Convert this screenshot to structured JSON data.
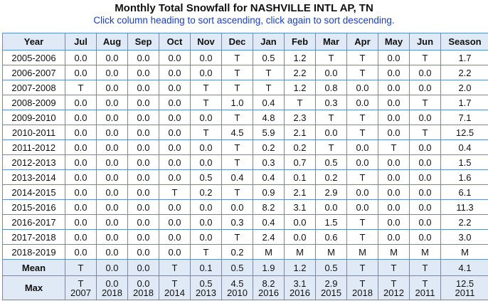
{
  "title": "Monthly Total Snowfall for NASHVILLE INTL AP, TN",
  "subtitle": "Click column heading to sort ascending, click again to sort descending.",
  "columns": [
    "Year",
    "Jul",
    "Aug",
    "Sep",
    "Oct",
    "Nov",
    "Dec",
    "Jan",
    "Feb",
    "Mar",
    "Apr",
    "May",
    "Jun",
    "Season"
  ],
  "rows": [
    [
      "2005-2006",
      "0.0",
      "0.0",
      "0.0",
      "0.0",
      "0.0",
      "T",
      "0.5",
      "1.2",
      "T",
      "T",
      "0.0",
      "T",
      "1.7"
    ],
    [
      "2006-2007",
      "0.0",
      "0.0",
      "0.0",
      "0.0",
      "0.0",
      "T",
      "T",
      "2.2",
      "0.0",
      "T",
      "0.0",
      "0.0",
      "2.2"
    ],
    [
      "2007-2008",
      "T",
      "0.0",
      "0.0",
      "0.0",
      "T",
      "T",
      "T",
      "1.2",
      "0.8",
      "0.0",
      "0.0",
      "0.0",
      "2.0"
    ],
    [
      "2008-2009",
      "0.0",
      "0.0",
      "0.0",
      "0.0",
      "T",
      "1.0",
      "0.4",
      "T",
      "0.3",
      "0.0",
      "0.0",
      "T",
      "1.7"
    ],
    [
      "2009-2010",
      "0.0",
      "0.0",
      "0.0",
      "0.0",
      "0.0",
      "T",
      "4.8",
      "2.3",
      "T",
      "T",
      "0.0",
      "0.0",
      "7.1"
    ],
    [
      "2010-2011",
      "0.0",
      "0.0",
      "0.0",
      "0.0",
      "T",
      "4.5",
      "5.9",
      "2.1",
      "0.0",
      "T",
      "0.0",
      "T",
      "12.5"
    ],
    [
      "2011-2012",
      "0.0",
      "0.0",
      "0.0",
      "0.0",
      "0.0",
      "T",
      "0.2",
      "0.2",
      "T",
      "0.0",
      "T",
      "0.0",
      "0.4"
    ],
    [
      "2012-2013",
      "0.0",
      "0.0",
      "0.0",
      "0.0",
      "0.0",
      "T",
      "0.3",
      "0.7",
      "0.5",
      "0.0",
      "0.0",
      "0.0",
      "1.5"
    ],
    [
      "2013-2014",
      "0.0",
      "0.0",
      "0.0",
      "0.0",
      "0.5",
      "0.4",
      "0.4",
      "0.1",
      "0.2",
      "T",
      "0.0",
      "0.0",
      "1.6"
    ],
    [
      "2014-2015",
      "0.0",
      "0.0",
      "0.0",
      "T",
      "0.2",
      "T",
      "0.9",
      "2.1",
      "2.9",
      "0.0",
      "0.0",
      "0.0",
      "6.1"
    ],
    [
      "2015-2016",
      "0.0",
      "0.0",
      "0.0",
      "0.0",
      "0.0",
      "0.0",
      "8.2",
      "3.1",
      "0.0",
      "0.0",
      "0.0",
      "0.0",
      "11.3"
    ],
    [
      "2016-2017",
      "0.0",
      "0.0",
      "0.0",
      "0.0",
      "0.0",
      "0.3",
      "0.4",
      "0.0",
      "1.5",
      "T",
      "0.0",
      "0.0",
      "2.2"
    ],
    [
      "2017-2018",
      "0.0",
      "0.0",
      "0.0",
      "0.0",
      "0.0",
      "T",
      "2.4",
      "0.0",
      "0.6",
      "T",
      "0.0",
      "0.0",
      "3.0"
    ],
    [
      "2018-2019",
      "0.0",
      "0.0",
      "0.0",
      "0.0",
      "T",
      "0.2",
      "M",
      "M",
      "M",
      "M",
      "M",
      "M",
      "M"
    ]
  ],
  "mean": {
    "label": "Mean",
    "values": [
      "T",
      "0.0",
      "0.0",
      "T",
      "0.1",
      "0.5",
      "1.9",
      "1.2",
      "0.5",
      "T",
      "T",
      "T",
      "4.1"
    ]
  },
  "max": {
    "label": "Max",
    "values": [
      {
        "value": "T",
        "year": "2007"
      },
      {
        "value": "0.0",
        "year": "2018"
      },
      {
        "value": "0.0",
        "year": "2018"
      },
      {
        "value": "T",
        "year": "2014"
      },
      {
        "value": "0.5",
        "year": "2013"
      },
      {
        "value": "4.5",
        "year": "2010"
      },
      {
        "value": "8.2",
        "year": "2016"
      },
      {
        "value": "3.1",
        "year": "2016"
      },
      {
        "value": "2.9",
        "year": "2015"
      },
      {
        "value": "T",
        "year": "2018"
      },
      {
        "value": "T",
        "year": "2012"
      },
      {
        "value": "T",
        "year": "2011"
      },
      {
        "value": "12.5",
        "year": "2011"
      }
    ]
  }
}
